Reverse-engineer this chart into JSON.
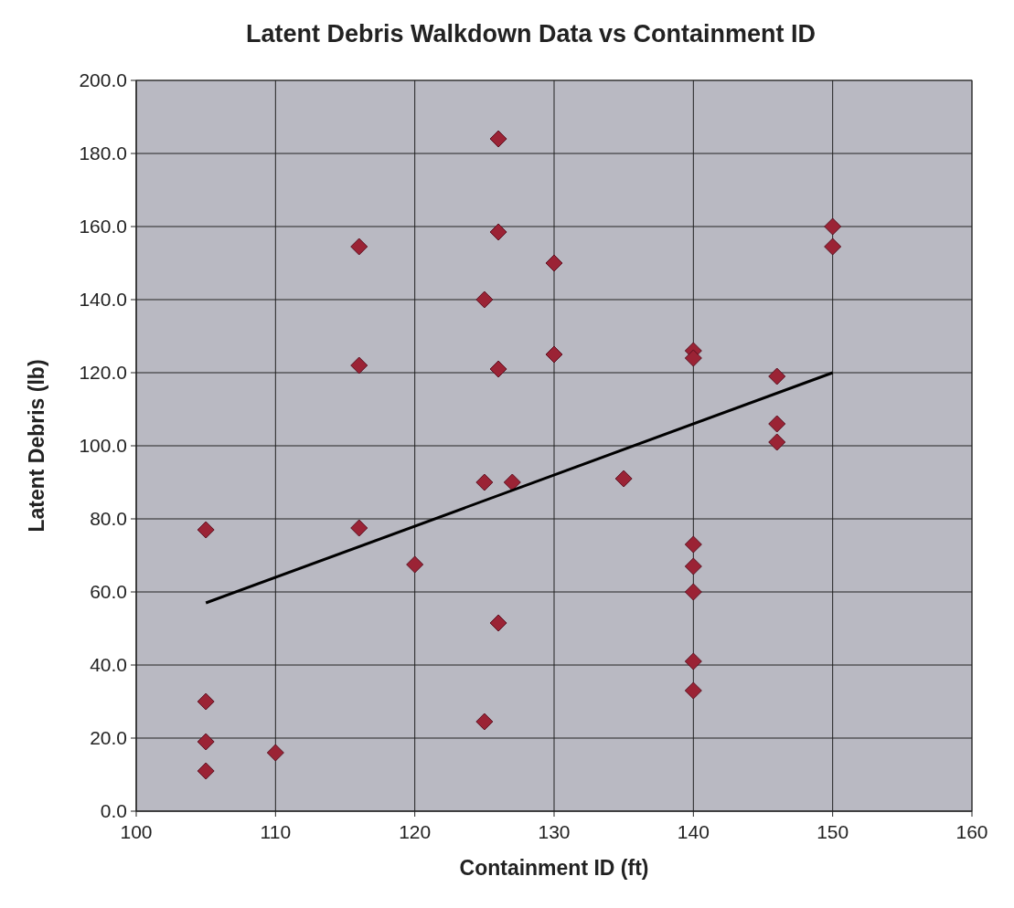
{
  "chart_data": {
    "type": "scatter",
    "title": "Latent Debris Walkdown Data vs Containment ID",
    "xlabel": "Containment ID (ft)",
    "ylabel": "Latent Debris (lb)",
    "xlim": [
      100,
      160
    ],
    "xticks": [
      100,
      110,
      120,
      130,
      140,
      150,
      160
    ],
    "ylim": [
      0,
      200
    ],
    "yticks": [
      {
        "value": 0,
        "label": "0.0"
      },
      {
        "value": 20,
        "label": "20.0"
      },
      {
        "value": 40,
        "label": "40.0"
      },
      {
        "value": 60,
        "label": "60.0"
      },
      {
        "value": 80,
        "label": "80.0"
      },
      {
        "value": 100,
        "label": "100.0"
      },
      {
        "value": 120,
        "label": "120.0"
      },
      {
        "value": 140,
        "label": "140.0"
      },
      {
        "value": 160,
        "label": "160.0"
      },
      {
        "value": 180,
        "label": "180.0"
      },
      {
        "value": 200,
        "label": "200.0"
      }
    ],
    "grid": true,
    "series": [
      {
        "type": "scatter",
        "marker": "diamond",
        "color": "#9b2335",
        "x": [
          105,
          105,
          105,
          105,
          110,
          116,
          116,
          116,
          120,
          125,
          125,
          125,
          126,
          126,
          126,
          126,
          127,
          130,
          130,
          135,
          140,
          140,
          140,
          140,
          140,
          140,
          140,
          146,
          146,
          146,
          150,
          150
        ],
        "values": [
          77,
          30,
          19,
          11,
          16,
          154.5,
          122,
          77.5,
          67.5,
          140,
          90,
          24.5,
          184,
          158.5,
          121,
          51.5,
          90,
          150,
          125,
          91,
          126,
          124,
          73,
          67,
          60,
          41,
          33,
          119,
          106,
          101,
          160,
          154.5
        ]
      },
      {
        "type": "line",
        "color": "#000000",
        "x": [
          105,
          150
        ],
        "values": [
          57,
          120
        ]
      }
    ]
  }
}
